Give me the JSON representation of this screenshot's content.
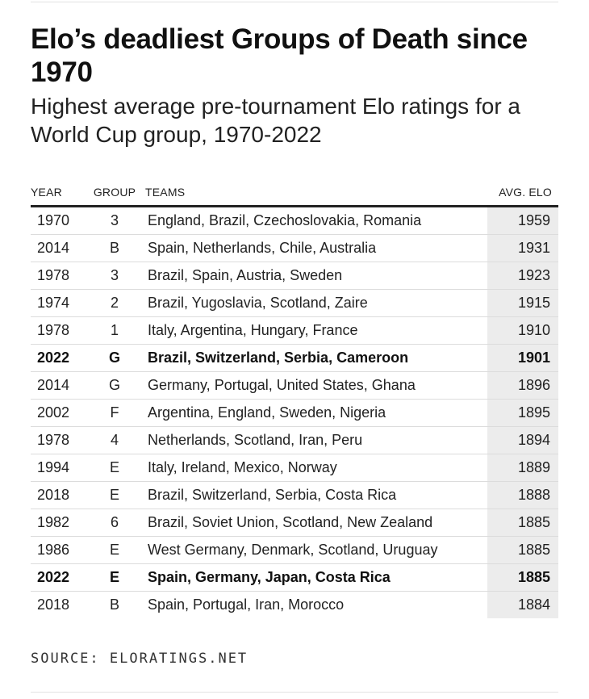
{
  "title": "Elo’s deadliest Groups of Death since 1970",
  "subtitle": "Highest average pre-tournament Elo ratings for a World Cup group, 1970-2022",
  "source": "SOURCE: ELORATINGS.NET",
  "chart_data": {
    "type": "table",
    "columns": [
      "YEAR",
      "GROUP",
      "TEAMS",
      "AVG. ELO"
    ],
    "rows": [
      {
        "year": "1970",
        "group": "3",
        "teams": "England, Brazil, Czechoslovakia, Romania",
        "avg_elo": "1959",
        "highlight": false
      },
      {
        "year": "2014",
        "group": "B",
        "teams": "Spain, Netherlands, Chile, Australia",
        "avg_elo": "1931",
        "highlight": false
      },
      {
        "year": "1978",
        "group": "3",
        "teams": "Brazil, Spain, Austria, Sweden",
        "avg_elo": "1923",
        "highlight": false
      },
      {
        "year": "1974",
        "group": "2",
        "teams": "Brazil, Yugoslavia, Scotland, Zaire",
        "avg_elo": "1915",
        "highlight": false
      },
      {
        "year": "1978",
        "group": "1",
        "teams": "Italy, Argentina, Hungary, France",
        "avg_elo": "1910",
        "highlight": false
      },
      {
        "year": "2022",
        "group": "G",
        "teams": "Brazil, Switzerland, Serbia, Cameroon",
        "avg_elo": "1901",
        "highlight": true
      },
      {
        "year": "2014",
        "group": "G",
        "teams": "Germany, Portugal, United States, Ghana",
        "avg_elo": "1896",
        "highlight": false
      },
      {
        "year": "2002",
        "group": "F",
        "teams": "Argentina, England, Sweden, Nigeria",
        "avg_elo": "1895",
        "highlight": false
      },
      {
        "year": "1978",
        "group": "4",
        "teams": "Netherlands, Scotland, Iran, Peru",
        "avg_elo": "1894",
        "highlight": false
      },
      {
        "year": "1994",
        "group": "E",
        "teams": "Italy, Ireland, Mexico, Norway",
        "avg_elo": "1889",
        "highlight": false
      },
      {
        "year": "2018",
        "group": "E",
        "teams": "Brazil, Switzerland, Serbia, Costa Rica",
        "avg_elo": "1888",
        "highlight": false
      },
      {
        "year": "1982",
        "group": "6",
        "teams": "Brazil, Soviet Union, Scotland, New Zealand",
        "avg_elo": "1885",
        "highlight": false
      },
      {
        "year": "1986",
        "group": "E",
        "teams": "West Germany, Denmark, Scotland, Uruguay",
        "avg_elo": "1885",
        "highlight": false
      },
      {
        "year": "2022",
        "group": "E",
        "teams": "Spain, Germany, Japan, Costa Rica",
        "avg_elo": "1885",
        "highlight": true
      },
      {
        "year": "2018",
        "group": "B",
        "teams": "Spain, Portugal, Iran, Morocco",
        "avg_elo": "1884",
        "highlight": false
      }
    ]
  },
  "colors": {
    "text": "#222222",
    "rule": "#222222",
    "elo_column_bg": "#ececec",
    "row_divider": "#dcdcdc"
  }
}
